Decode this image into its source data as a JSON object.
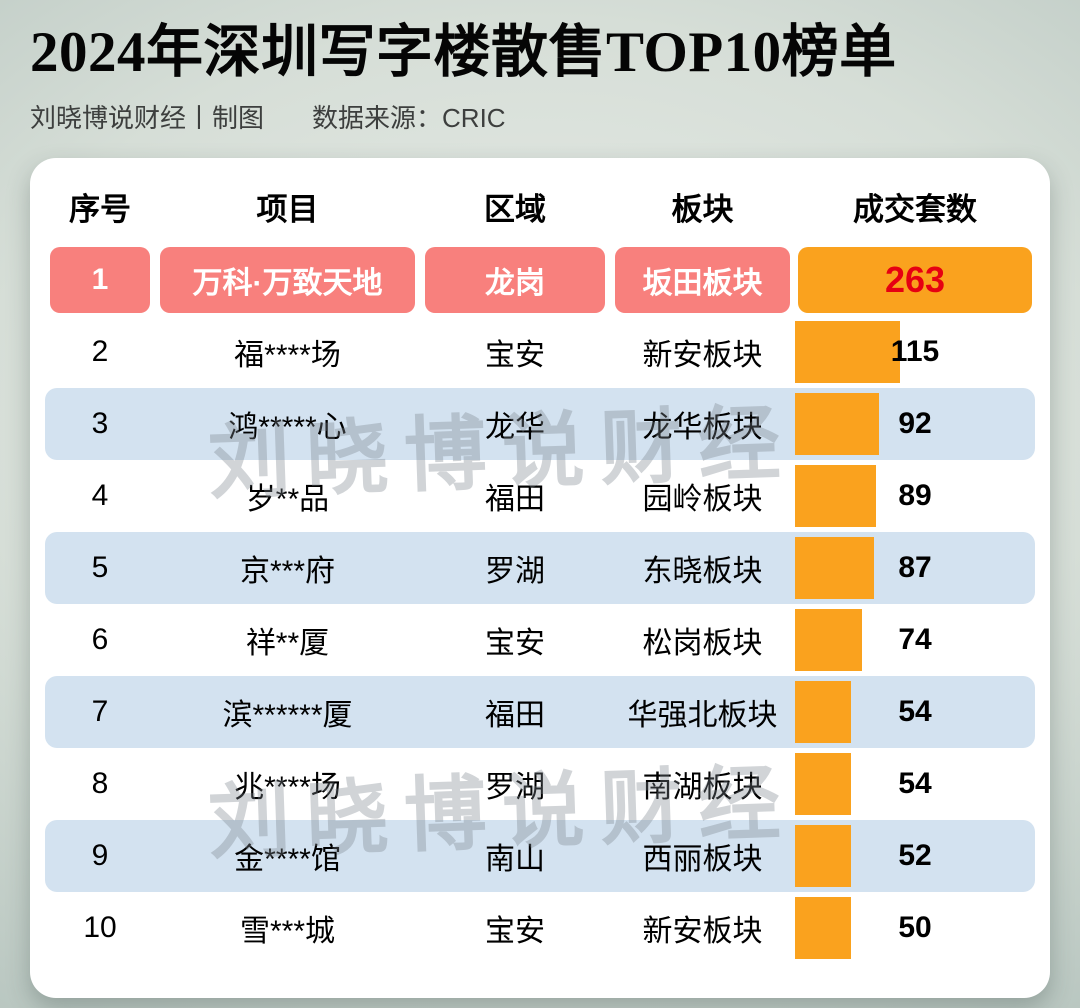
{
  "header": {
    "title": "2024年深圳写字楼散售TOP10榜单",
    "credit": "刘晓博说财经丨制图",
    "source": "数据来源：CRIC"
  },
  "watermark": "刘晓博说财经",
  "colors": {
    "highlight_row": "#F8807D",
    "bar": "#FAA21E",
    "alt_row": "#D3E2F0",
    "top_value_text": "#E60012"
  },
  "chart_data": {
    "type": "table",
    "title": "2024年深圳写字楼散售TOP10榜单",
    "columns": [
      "序号",
      "项目",
      "区域",
      "板块",
      "成交套数"
    ],
    "bar_column": "成交套数",
    "bar_max": 263,
    "rows": [
      {
        "rank": "1",
        "project": "万科·万致天地",
        "district": "龙岗",
        "sector": "坂田板块",
        "units": 263,
        "highlight": true
      },
      {
        "rank": "2",
        "project": "福****场",
        "district": "宝安",
        "sector": "新安板块",
        "units": 115,
        "highlight": false
      },
      {
        "rank": "3",
        "project": "鸿*****心",
        "district": "龙华",
        "sector": "龙华板块",
        "units": 92,
        "highlight": false
      },
      {
        "rank": "4",
        "project": "岁**品",
        "district": "福田",
        "sector": "园岭板块",
        "units": 89,
        "highlight": false
      },
      {
        "rank": "5",
        "project": "京***府",
        "district": "罗湖",
        "sector": "东晓板块",
        "units": 87,
        "highlight": false
      },
      {
        "rank": "6",
        "project": "祥**厦",
        "district": "宝安",
        "sector": "松岗板块",
        "units": 74,
        "highlight": false
      },
      {
        "rank": "7",
        "project": "滨******厦",
        "district": "福田",
        "sector": "华强北板块",
        "units": 54,
        "highlight": false
      },
      {
        "rank": "8",
        "project": "兆****场",
        "district": "罗湖",
        "sector": "南湖板块",
        "units": 54,
        "highlight": false
      },
      {
        "rank": "9",
        "project": "金****馆",
        "district": "南山",
        "sector": "西丽板块",
        "units": 52,
        "highlight": false
      },
      {
        "rank": "10",
        "project": "雪***城",
        "district": "宝安",
        "sector": "新安板块",
        "units": 50,
        "highlight": false
      }
    ]
  }
}
